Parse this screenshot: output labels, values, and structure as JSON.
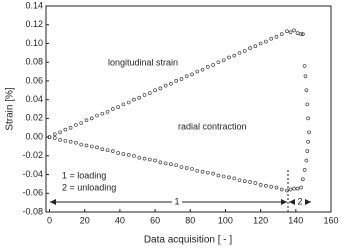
{
  "chart_data": {
    "type": "scatter",
    "xlabel": "Data acquisition [ - ]",
    "ylabel": "Strain [%]",
    "xlim": [
      -2,
      160
    ],
    "ylim": [
      -0.08,
      0.14
    ],
    "xticks": [
      0,
      20,
      40,
      60,
      80,
      100,
      120,
      140,
      160
    ],
    "yticks": [
      -0.08,
      -0.06,
      -0.04,
      -0.02,
      {
        "value": 0,
        "label": "0.00"
      },
      0.02,
      0.04,
      0.06,
      0.08,
      {
        "value": 0.1,
        "label": "0.10"
      },
      0.12,
      0.14
    ],
    "annotations": [
      "longitudinal strain",
      "radial contraction",
      "1 = loading",
      "2 = unloading",
      "1",
      "2"
    ],
    "series": [
      {
        "name": "longitudinal strain",
        "color": "#444444",
        "x": [
          0,
          3,
          6,
          9,
          12,
          15,
          18,
          21,
          24,
          27,
          30,
          33,
          36,
          39,
          42,
          45,
          48,
          51,
          54,
          57,
          60,
          63,
          66,
          69,
          72,
          75,
          78,
          81,
          84,
          87,
          90,
          93,
          96,
          99,
          102,
          105,
          108,
          111,
          114,
          117,
          120,
          123,
          126,
          129,
          132,
          135,
          137,
          139,
          141,
          143,
          144,
          145,
          145.5,
          146,
          146.5,
          147,
          147.5
        ],
        "values": [
          0,
          0.003,
          0.005,
          0.008,
          0.01,
          0.013,
          0.015,
          0.018,
          0.02,
          0.023,
          0.025,
          0.027,
          0.03,
          0.032,
          0.035,
          0.037,
          0.04,
          0.042,
          0.045,
          0.047,
          0.05,
          0.052,
          0.055,
          0.057,
          0.06,
          0.062,
          0.065,
          0.067,
          0.07,
          0.072,
          0.075,
          0.077,
          0.08,
          0.082,
          0.085,
          0.087,
          0.09,
          0.092,
          0.095,
          0.097,
          0.1,
          0.102,
          0.105,
          0.107,
          0.11,
          0.113,
          0.112,
          0.114,
          0.111,
          0.11,
          0.11,
          0.076,
          0.065,
          0.05,
          0.035,
          0.02,
          0.005
        ]
      },
      {
        "name": "radial contraction",
        "color": "#444444",
        "x": [
          0,
          3,
          6,
          9,
          12,
          15,
          18,
          21,
          24,
          27,
          30,
          33,
          36,
          39,
          42,
          45,
          48,
          51,
          54,
          57,
          60,
          63,
          66,
          69,
          72,
          75,
          78,
          81,
          84,
          87,
          90,
          93,
          96,
          99,
          102,
          105,
          108,
          111,
          114,
          117,
          120,
          123,
          126,
          129,
          132,
          135,
          137,
          139,
          141,
          143,
          144,
          145,
          146,
          146.5,
          147
        ],
        "values": [
          0,
          -0.001,
          -0.003,
          -0.004,
          -0.005,
          -0.006,
          -0.008,
          -0.009,
          -0.01,
          -0.011,
          -0.013,
          -0.014,
          -0.015,
          -0.017,
          -0.018,
          -0.019,
          -0.02,
          -0.022,
          -0.023,
          -0.024,
          -0.025,
          -0.027,
          -0.028,
          -0.029,
          -0.03,
          -0.032,
          -0.033,
          -0.034,
          -0.036,
          -0.037,
          -0.038,
          -0.039,
          -0.041,
          -0.042,
          -0.043,
          -0.044,
          -0.046,
          -0.047,
          -0.048,
          -0.049,
          -0.051,
          -0.052,
          -0.053,
          -0.054,
          -0.056,
          -0.057,
          -0.056,
          -0.055,
          -0.055,
          -0.054,
          -0.045,
          -0.035,
          -0.025,
          -0.015,
          -0.005
        ]
      }
    ]
  }
}
